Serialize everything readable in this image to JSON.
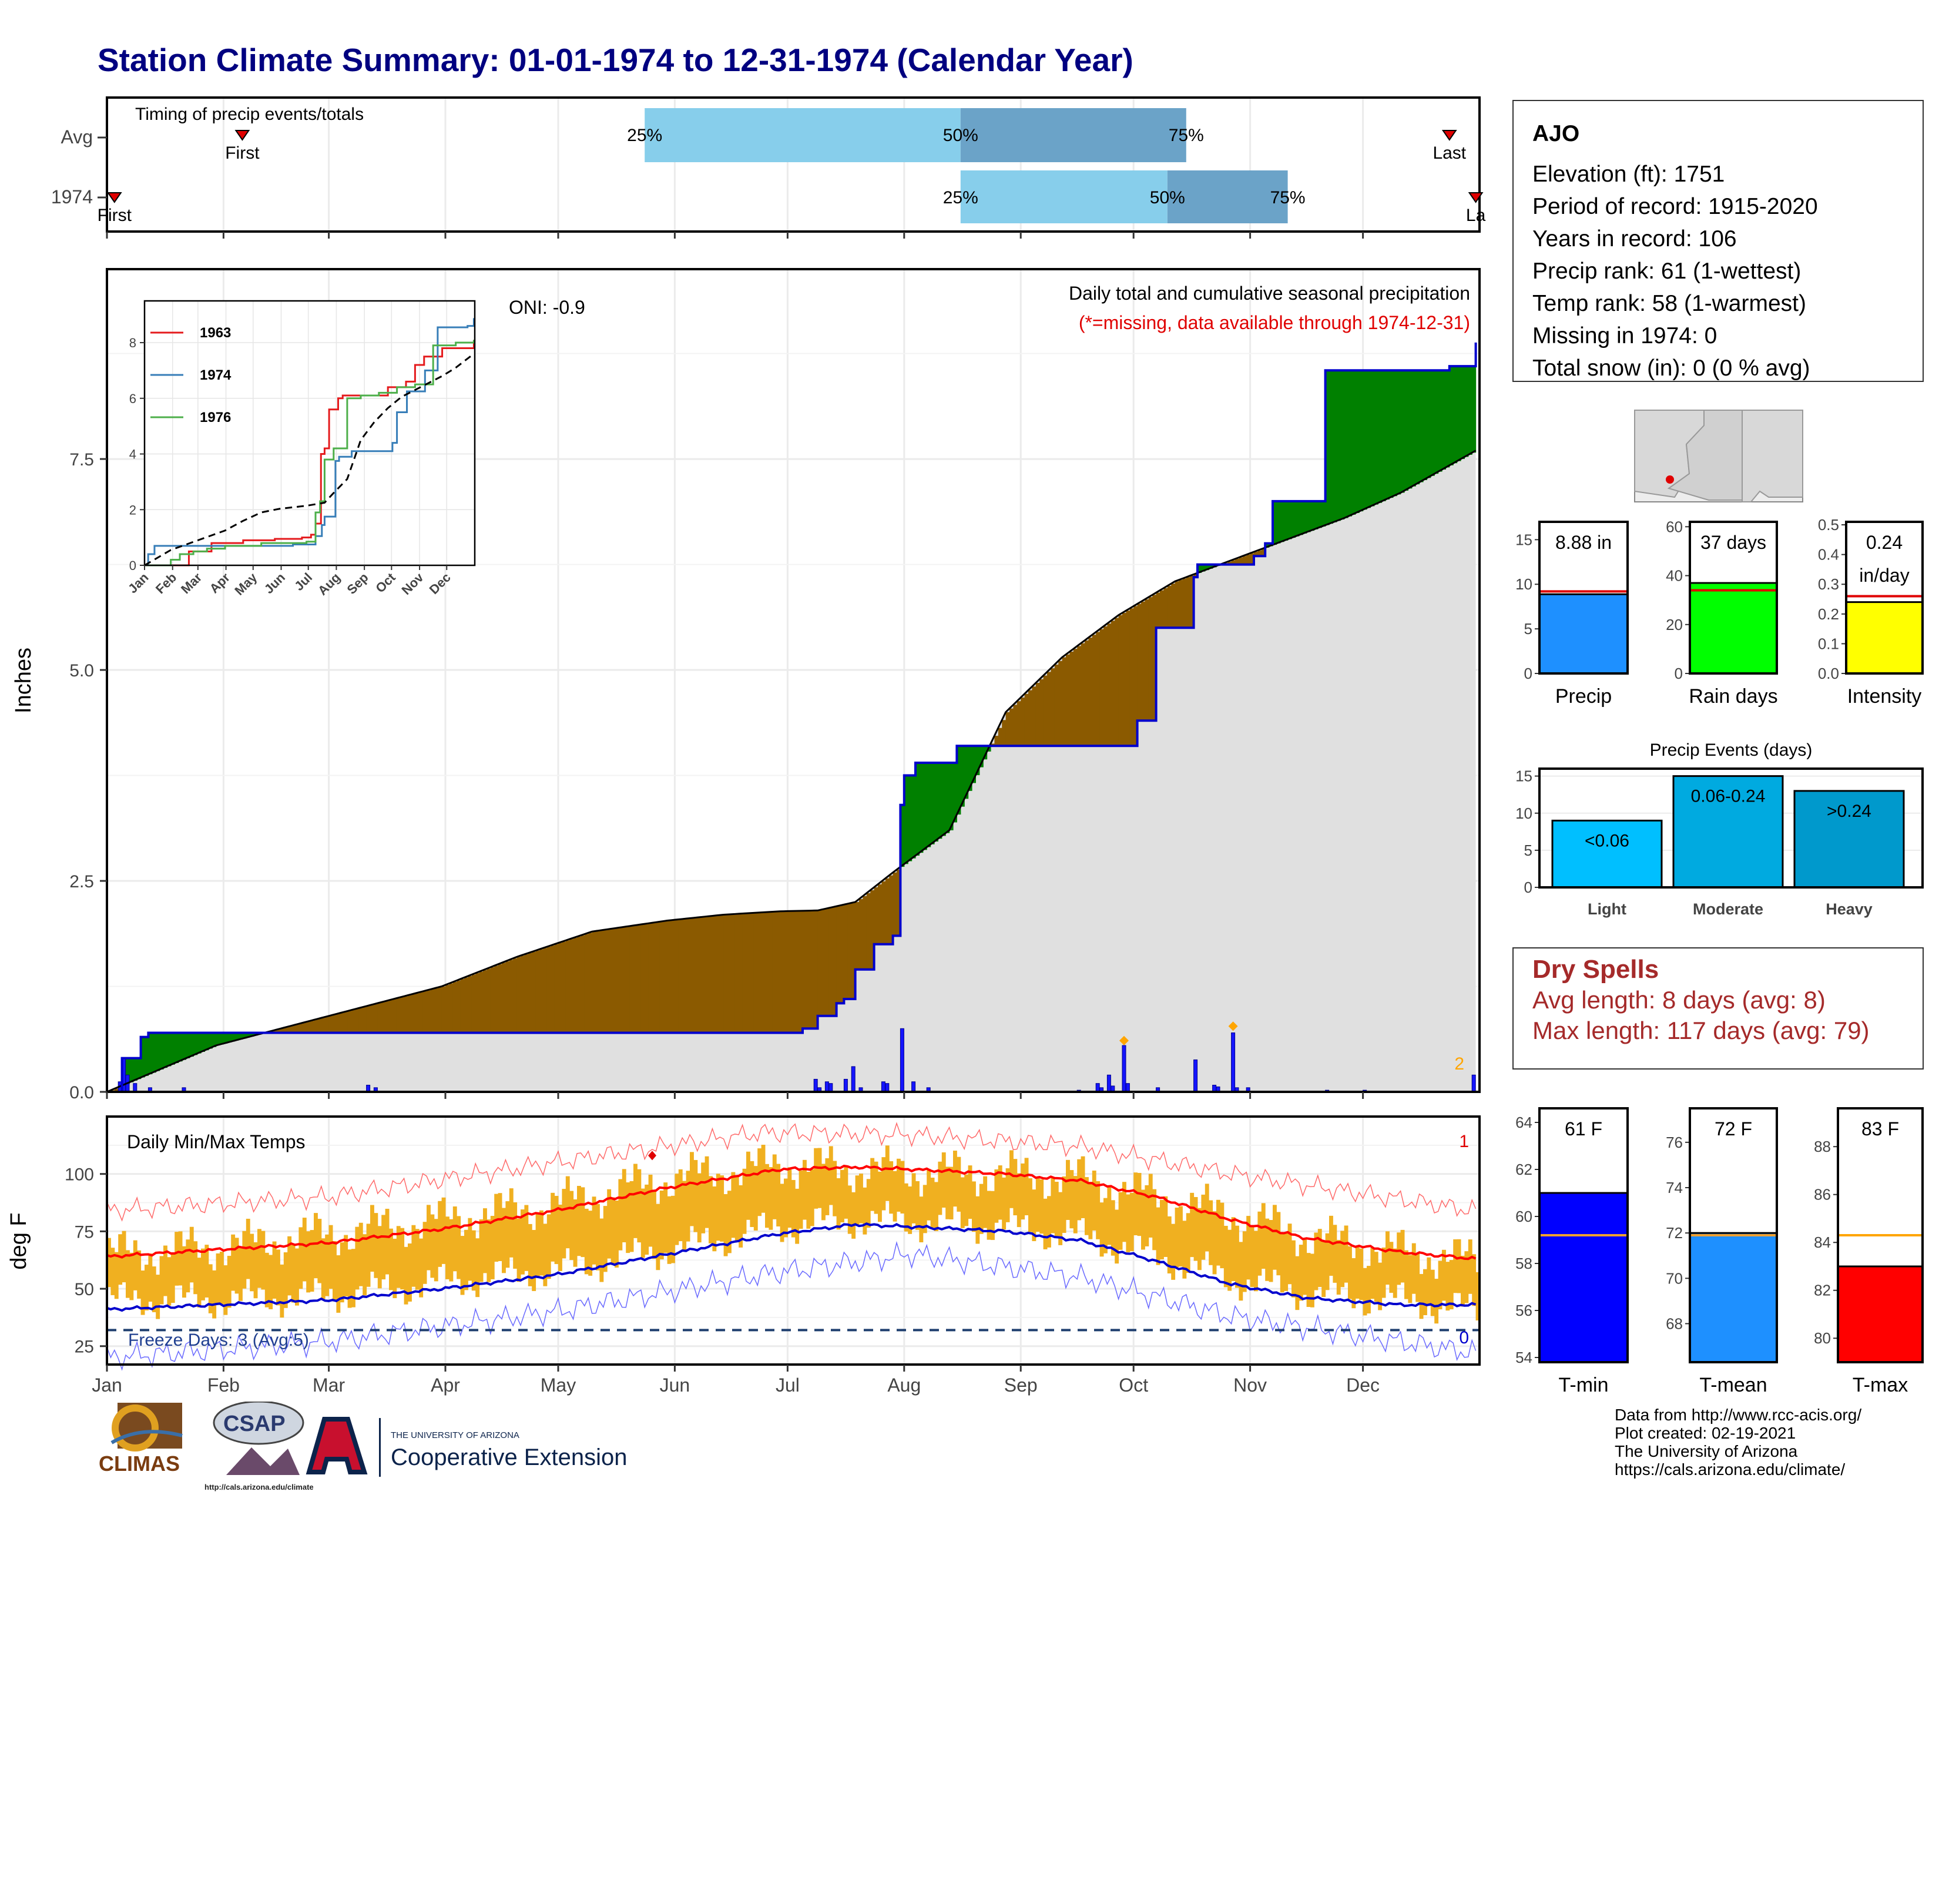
{
  "title": "Station Climate Summary: 01-01-1974 to 12-31-1974 (Calendar Year)",
  "timing": {
    "title": "Timing of precip events/totals",
    "rows": [
      {
        "label": "Avg",
        "first": "First",
        "last": "Last",
        "q25": "25%",
        "q50": "50%",
        "q75": "75%"
      },
      {
        "label": "1974",
        "first": "First",
        "last": "La",
        "q25": "25%",
        "q50": "50%",
        "q75": "75%"
      }
    ],
    "avg_days": {
      "first": 37,
      "q25": 144,
      "q50": 228,
      "q75": 288,
      "last": 358
    },
    "yr_days": {
      "first": 3,
      "q25": 228,
      "q50": 283,
      "q75": 315,
      "last": 365
    }
  },
  "precip": {
    "ylabel": "Inches",
    "oni": "ONI: -0.9",
    "caption": "Daily total and cumulative seasonal precipitation",
    "missing_note": "(*=missing, data available through 1974-12-31)",
    "corner_count": "2"
  },
  "temps": {
    "title": "Daily Min/Max Temps",
    "ylabel": "deg F",
    "freeze": "Freeze Days: 3 (Avg:5)",
    "count_top": "1",
    "count_bottom": "0"
  },
  "months": [
    "Jan",
    "Feb",
    "Mar",
    "Apr",
    "May",
    "Jun",
    "Jul",
    "Aug",
    "Sep",
    "Oct",
    "Nov",
    "Dec"
  ],
  "inset_months": [
    "Jan",
    "Feb",
    "Mar",
    "Apr",
    "May",
    "Jun",
    "Jul",
    "Aug",
    "Sep",
    "Oct",
    "Nov",
    "Dec"
  ],
  "station": {
    "name": "AJO",
    "lines": [
      "Elevation (ft): 1751",
      "Period of record: 1915-2020",
      "Years in record: 106",
      "Precip rank: 61 (1-wettest)",
      "Temp rank: 58 (1-warmest)",
      "Missing in 1974: 0",
      "Total snow (in): 0 (0 % avg)"
    ]
  },
  "dry_spells": {
    "title": "Dry Spells",
    "avg": "Avg length: 8 days (avg: 8)",
    "max": "Max length: 117 days (avg: 79)"
  },
  "mini": {
    "precip": {
      "label": "Precip",
      "value_text": "8.88 in"
    },
    "raindays": {
      "label": "Rain days",
      "value_text": "37 days"
    },
    "intensity": {
      "label": "Intensity",
      "value_text": "0.24",
      "value_text2": "in/day"
    },
    "events_title": "Precip Events (days)",
    "tmin": {
      "label": "T-min",
      "value_text": "61 F"
    },
    "tmean": {
      "label": "T-mean",
      "value_text": "72 F"
    },
    "tmax": {
      "label": "T-max",
      "value_text": "83 F"
    }
  },
  "credits": [
    "Data from http://www.rcc-acis.org/",
    "Plot created: 02-19-2021",
    "The University of Arizona",
    "https://cals.arizona.edu/climate/"
  ],
  "logos": {
    "climas": "CLIMAS",
    "csap": "CSAP",
    "csap_url": "http://cals.arizona.edu/climate",
    "ua_top": "THE UNIVERSITY OF ARIZONA",
    "ua_bottom": "Cooperative Extension"
  },
  "colors": {
    "title": "#000080",
    "above_avg": "#008000",
    "below_avg": "#8b5a00",
    "avg_fill": "#e0e0e0",
    "obs_line": "#0000cd",
    "avg_line": "#000000",
    "tmax_line": "#ff0000",
    "tmin_line": "#0000cd",
    "temp_bars": "#f0b020",
    "dry": "#a52a2a",
    "q_light": "#87ceeb",
    "q_dark": "#6ba3c8"
  },
  "chart_data": [
    {
      "type": "area",
      "title": "Daily total and cumulative seasonal precipitation",
      "ylabel": "Inches",
      "ylim": [
        0,
        9.75
      ],
      "yticks": [
        0.0,
        2.5,
        5.0,
        7.5
      ],
      "x_units": "day of year",
      "series": [
        {
          "name": "1974",
          "x": [
            1,
            5,
            10,
            12,
            21,
            42,
            45,
            65,
            75,
            160,
            165,
            186,
            190,
            195,
            197,
            200,
            205,
            210,
            212,
            213,
            216,
            227,
            230,
            239,
            271,
            275,
            280,
            290,
            291,
            295,
            306,
            309,
            311,
            325,
            358,
            365
          ],
          "y": [
            0.0,
            0.4,
            0.65,
            0.7,
            0.7,
            0.7,
            0.7,
            0.7,
            0.7,
            0.7,
            0.7,
            0.75,
            0.9,
            1.05,
            1.1,
            1.45,
            1.75,
            1.85,
            3.4,
            3.75,
            3.9,
            4.1,
            4.1,
            4.1,
            4.1,
            4.4,
            5.5,
            6.1,
            6.25,
            6.25,
            6.35,
            6.5,
            7.0,
            8.55,
            8.6,
            8.88
          ]
        },
        {
          "name": "Avg",
          "x": [
            1,
            30,
            60,
            90,
            110,
            130,
            150,
            165,
            180,
            190,
            200,
            210,
            225,
            240,
            255,
            270,
            285,
            300,
            315,
            330,
            345,
            365
          ],
          "y": [
            0.0,
            0.55,
            0.9,
            1.25,
            1.6,
            1.9,
            2.03,
            2.1,
            2.14,
            2.15,
            2.25,
            2.6,
            3.1,
            4.5,
            5.15,
            5.65,
            6.05,
            6.3,
            6.55,
            6.8,
            7.1,
            7.6
          ]
        }
      ],
      "daily_totals": [
        {
          "day": 4,
          "value": 0.12
        },
        {
          "day": 5,
          "value": 0.4
        },
        {
          "day": 6,
          "value": 0.2
        },
        {
          "day": 8,
          "value": 0.1
        },
        {
          "day": 12,
          "value": 0.05
        },
        {
          "day": 21,
          "value": 0.05
        },
        {
          "day": 70,
          "value": 0.08
        },
        {
          "day": 72,
          "value": 0.05
        },
        {
          "day": 189,
          "value": 0.15
        },
        {
          "day": 190,
          "value": 0.05
        },
        {
          "day": 192,
          "value": 0.12
        },
        {
          "day": 193,
          "value": 0.1
        },
        {
          "day": 197,
          "value": 0.15
        },
        {
          "day": 199,
          "value": 0.3
        },
        {
          "day": 201,
          "value": 0.05
        },
        {
          "day": 207,
          "value": 0.12
        },
        {
          "day": 208,
          "value": 0.1
        },
        {
          "day": 212,
          "value": 0.75
        },
        {
          "day": 215,
          "value": 0.12
        },
        {
          "day": 219,
          "value": 0.05
        },
        {
          "day": 259,
          "value": 0.02
        },
        {
          "day": 264,
          "value": 0.1
        },
        {
          "day": 265,
          "value": 0.05
        },
        {
          "day": 267,
          "value": 0.2
        },
        {
          "day": 268,
          "value": 0.07
        },
        {
          "day": 271,
          "value": 0.55
        },
        {
          "day": 272,
          "value": 0.1
        },
        {
          "day": 280,
          "value": 0.05
        },
        {
          "day": 290,
          "value": 0.38
        },
        {
          "day": 295,
          "value": 0.08
        },
        {
          "day": 296,
          "value": 0.06
        },
        {
          "day": 300,
          "value": 0.7
        },
        {
          "day": 301,
          "value": 0.05
        },
        {
          "day": 304,
          "value": 0.05
        },
        {
          "day": 325,
          "value": 0.02
        },
        {
          "day": 335,
          "value": 0.02
        },
        {
          "day": 364,
          "value": 0.2
        }
      ]
    },
    {
      "type": "line",
      "title": "",
      "ylabel": "Inches",
      "ylim": [
        0,
        9.5
      ],
      "yticks": [
        0,
        2,
        4,
        6,
        8
      ],
      "x_units": "day of year",
      "series": [
        {
          "name": "1963",
          "x": [
            1,
            35,
            50,
            75,
            110,
            145,
            175,
            185,
            190,
            196,
            200,
            205,
            215,
            220,
            235,
            250,
            270,
            290,
            300,
            310,
            330,
            365
          ],
          "y": [
            0,
            0,
            0.5,
            0.8,
            0.9,
            0.95,
            1.0,
            1.1,
            1.5,
            4.0,
            4.2,
            5.6,
            6.0,
            6.1,
            6.1,
            6.1,
            6.4,
            6.6,
            7.2,
            7.5,
            7.8,
            8.1
          ]
        },
        {
          "name": "1974",
          "x": [
            1,
            5,
            12,
            70,
            165,
            190,
            197,
            200,
            212,
            216,
            230,
            275,
            280,
            291,
            311,
            325,
            358,
            365
          ],
          "y": [
            0,
            0.4,
            0.7,
            0.7,
            0.75,
            1.05,
            1.45,
            1.75,
            3.75,
            3.9,
            4.1,
            4.4,
            5.5,
            6.25,
            7.0,
            8.55,
            8.6,
            8.88
          ]
        },
        {
          "name": "1976",
          "x": [
            1,
            30,
            40,
            55,
            70,
            90,
            130,
            180,
            190,
            195,
            200,
            210,
            225,
            240,
            260,
            280,
            300,
            320,
            345,
            365
          ],
          "y": [
            0,
            0.2,
            0.4,
            0.5,
            0.6,
            0.7,
            0.8,
            0.85,
            1.9,
            2.3,
            3.8,
            4.2,
            6.0,
            6.1,
            6.2,
            6.4,
            6.5,
            7.9,
            8.0,
            8.1
          ]
        },
        {
          "name": "Avg",
          "x": [
            1,
            30,
            60,
            90,
            110,
            130,
            150,
            180,
            200,
            210,
            225,
            240,
            255,
            270,
            285,
            300,
            315,
            330,
            345,
            365
          ],
          "y": [
            0,
            0.55,
            0.9,
            1.25,
            1.6,
            1.9,
            2.03,
            2.14,
            2.25,
            2.6,
            3.1,
            4.5,
            5.15,
            5.65,
            6.05,
            6.3,
            6.55,
            6.8,
            7.1,
            7.6
          ]
        }
      ]
    },
    {
      "type": "line",
      "title": "Daily Min/Max Temps",
      "ylabel": "deg F",
      "ylim": [
        17,
        125
      ],
      "yticks": [
        25,
        50,
        75,
        100
      ],
      "x_units": "day of year",
      "freeze_threshold": 32,
      "series": [
        {
          "name": "Avg Tmax",
          "x": [
            1,
            30,
            60,
            90,
            120,
            150,
            180,
            200,
            215,
            240,
            260,
            280,
            300,
            320,
            345,
            365
          ],
          "y": [
            64,
            67,
            70,
            76,
            84,
            94,
            102,
            103,
            102,
            100,
            97,
            90,
            80,
            72,
            66,
            63
          ]
        },
        {
          "name": "Avg Tmin",
          "x": [
            1,
            30,
            60,
            90,
            120,
            150,
            180,
            200,
            215,
            240,
            260,
            280,
            300,
            320,
            345,
            365
          ],
          "y": [
            41,
            43,
            45,
            50,
            56,
            65,
            74,
            78,
            77,
            75,
            71,
            62,
            52,
            46,
            43,
            43
          ]
        },
        {
          "name": "Record High",
          "x": [
            1,
            60,
            120,
            175,
            215,
            260,
            300,
            365
          ],
          "y": [
            84,
            90,
            105,
            118,
            117,
            112,
            100,
            84
          ]
        },
        {
          "name": "Record Low",
          "x": [
            1,
            60,
            120,
            175,
            215,
            260,
            300,
            365
          ],
          "y": [
            20,
            27,
            40,
            56,
            65,
            55,
            38,
            22
          ]
        }
      ],
      "daily_range_band": {
        "x": [
          1,
          30,
          60,
          90,
          120,
          150,
          180,
          200,
          215,
          240,
          260,
          280,
          300,
          320,
          345,
          365
        ],
        "low": [
          45,
          45,
          47,
          53,
          58,
          67,
          77,
          80,
          79,
          77,
          73,
          64,
          54,
          48,
          45,
          40
        ],
        "high": [
          65,
          68,
          74,
          80,
          87,
          98,
          104,
          102,
          101,
          100,
          98,
          90,
          82,
          73,
          66,
          62
        ]
      }
    },
    {
      "type": "bar",
      "title": "",
      "categories": [
        "Precip"
      ],
      "values": [
        8.88
      ],
      "average": 9.2,
      "ylim": [
        0,
        17
      ],
      "yticks": [
        0,
        5,
        10,
        15
      ]
    },
    {
      "type": "bar",
      "title": "",
      "categories": [
        "Rain days"
      ],
      "values": [
        37
      ],
      "average": 34,
      "ylim": [
        0,
        62
      ],
      "yticks": [
        0,
        20,
        40,
        60
      ]
    },
    {
      "type": "bar",
      "title": "",
      "categories": [
        "Intensity"
      ],
      "values": [
        0.24
      ],
      "average": 0.26,
      "ylim": [
        0,
        0.51
      ],
      "yticks": [
        0.0,
        0.1,
        0.2,
        0.3,
        0.4,
        0.5
      ]
    },
    {
      "type": "bar",
      "title": "Precip Events (days)",
      "categories": [
        "Light",
        "Moderate",
        "Heavy"
      ],
      "bar_labels": [
        "<0.06",
        "0.06-0.24",
        ">0.24"
      ],
      "values": [
        9,
        15,
        13
      ],
      "ylim": [
        0,
        16
      ],
      "yticks": [
        0,
        5,
        10,
        15
      ]
    },
    {
      "type": "bar",
      "title": "",
      "categories": [
        "T-min"
      ],
      "values": [
        61
      ],
      "average": 59.2,
      "ylim": [
        53.8,
        64.6
      ],
      "yticks": [
        54,
        56,
        58,
        60,
        62,
        64
      ]
    },
    {
      "type": "bar",
      "title": "",
      "categories": [
        "T-mean"
      ],
      "values": [
        72
      ],
      "average": 71.9,
      "ylim": [
        66.3,
        77.5
      ],
      "yticks": [
        68,
        70,
        72,
        74,
        76
      ]
    },
    {
      "type": "bar",
      "title": "",
      "categories": [
        "T-max"
      ],
      "values": [
        83
      ],
      "average": 84.3,
      "ylim": [
        79,
        89.6
      ],
      "yticks": [
        80,
        82,
        84,
        86,
        88
      ]
    }
  ]
}
